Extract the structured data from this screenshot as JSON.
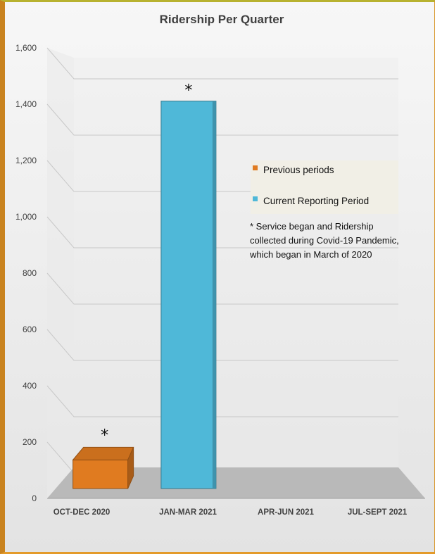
{
  "chart_data": {
    "type": "bar",
    "title": "Ridership Per Quarter",
    "categories": [
      "OCT-DEC 2020",
      "JAN-MAR 2021",
      "APR-JUN 2021",
      "JUL-SEPT 2021"
    ],
    "series": [
      {
        "name": "Previous periods",
        "values": [
          110,
          null,
          null,
          null
        ],
        "color": "#e07b20"
      },
      {
        "name": "Current Reporting Period",
        "values": [
          null,
          1490,
          null,
          null
        ],
        "color": "#4fb8d8"
      }
    ],
    "ylim": [
      0,
      1600
    ],
    "yticks": [
      0,
      200,
      400,
      600,
      800,
      1000,
      1200,
      1400,
      1600
    ],
    "ytick_labels": [
      "0",
      "200",
      "400",
      "600",
      "800",
      "1,000",
      "1,200",
      "1,400",
      "1,600"
    ],
    "bar_annotations": [
      "*",
      "*",
      "",
      ""
    ],
    "grid": true,
    "legend_position": "right",
    "note_lines": [
      "* Service began and Ridership",
      "collected during Covid-19 Pandemic,",
      "which began in March of 2020"
    ]
  }
}
